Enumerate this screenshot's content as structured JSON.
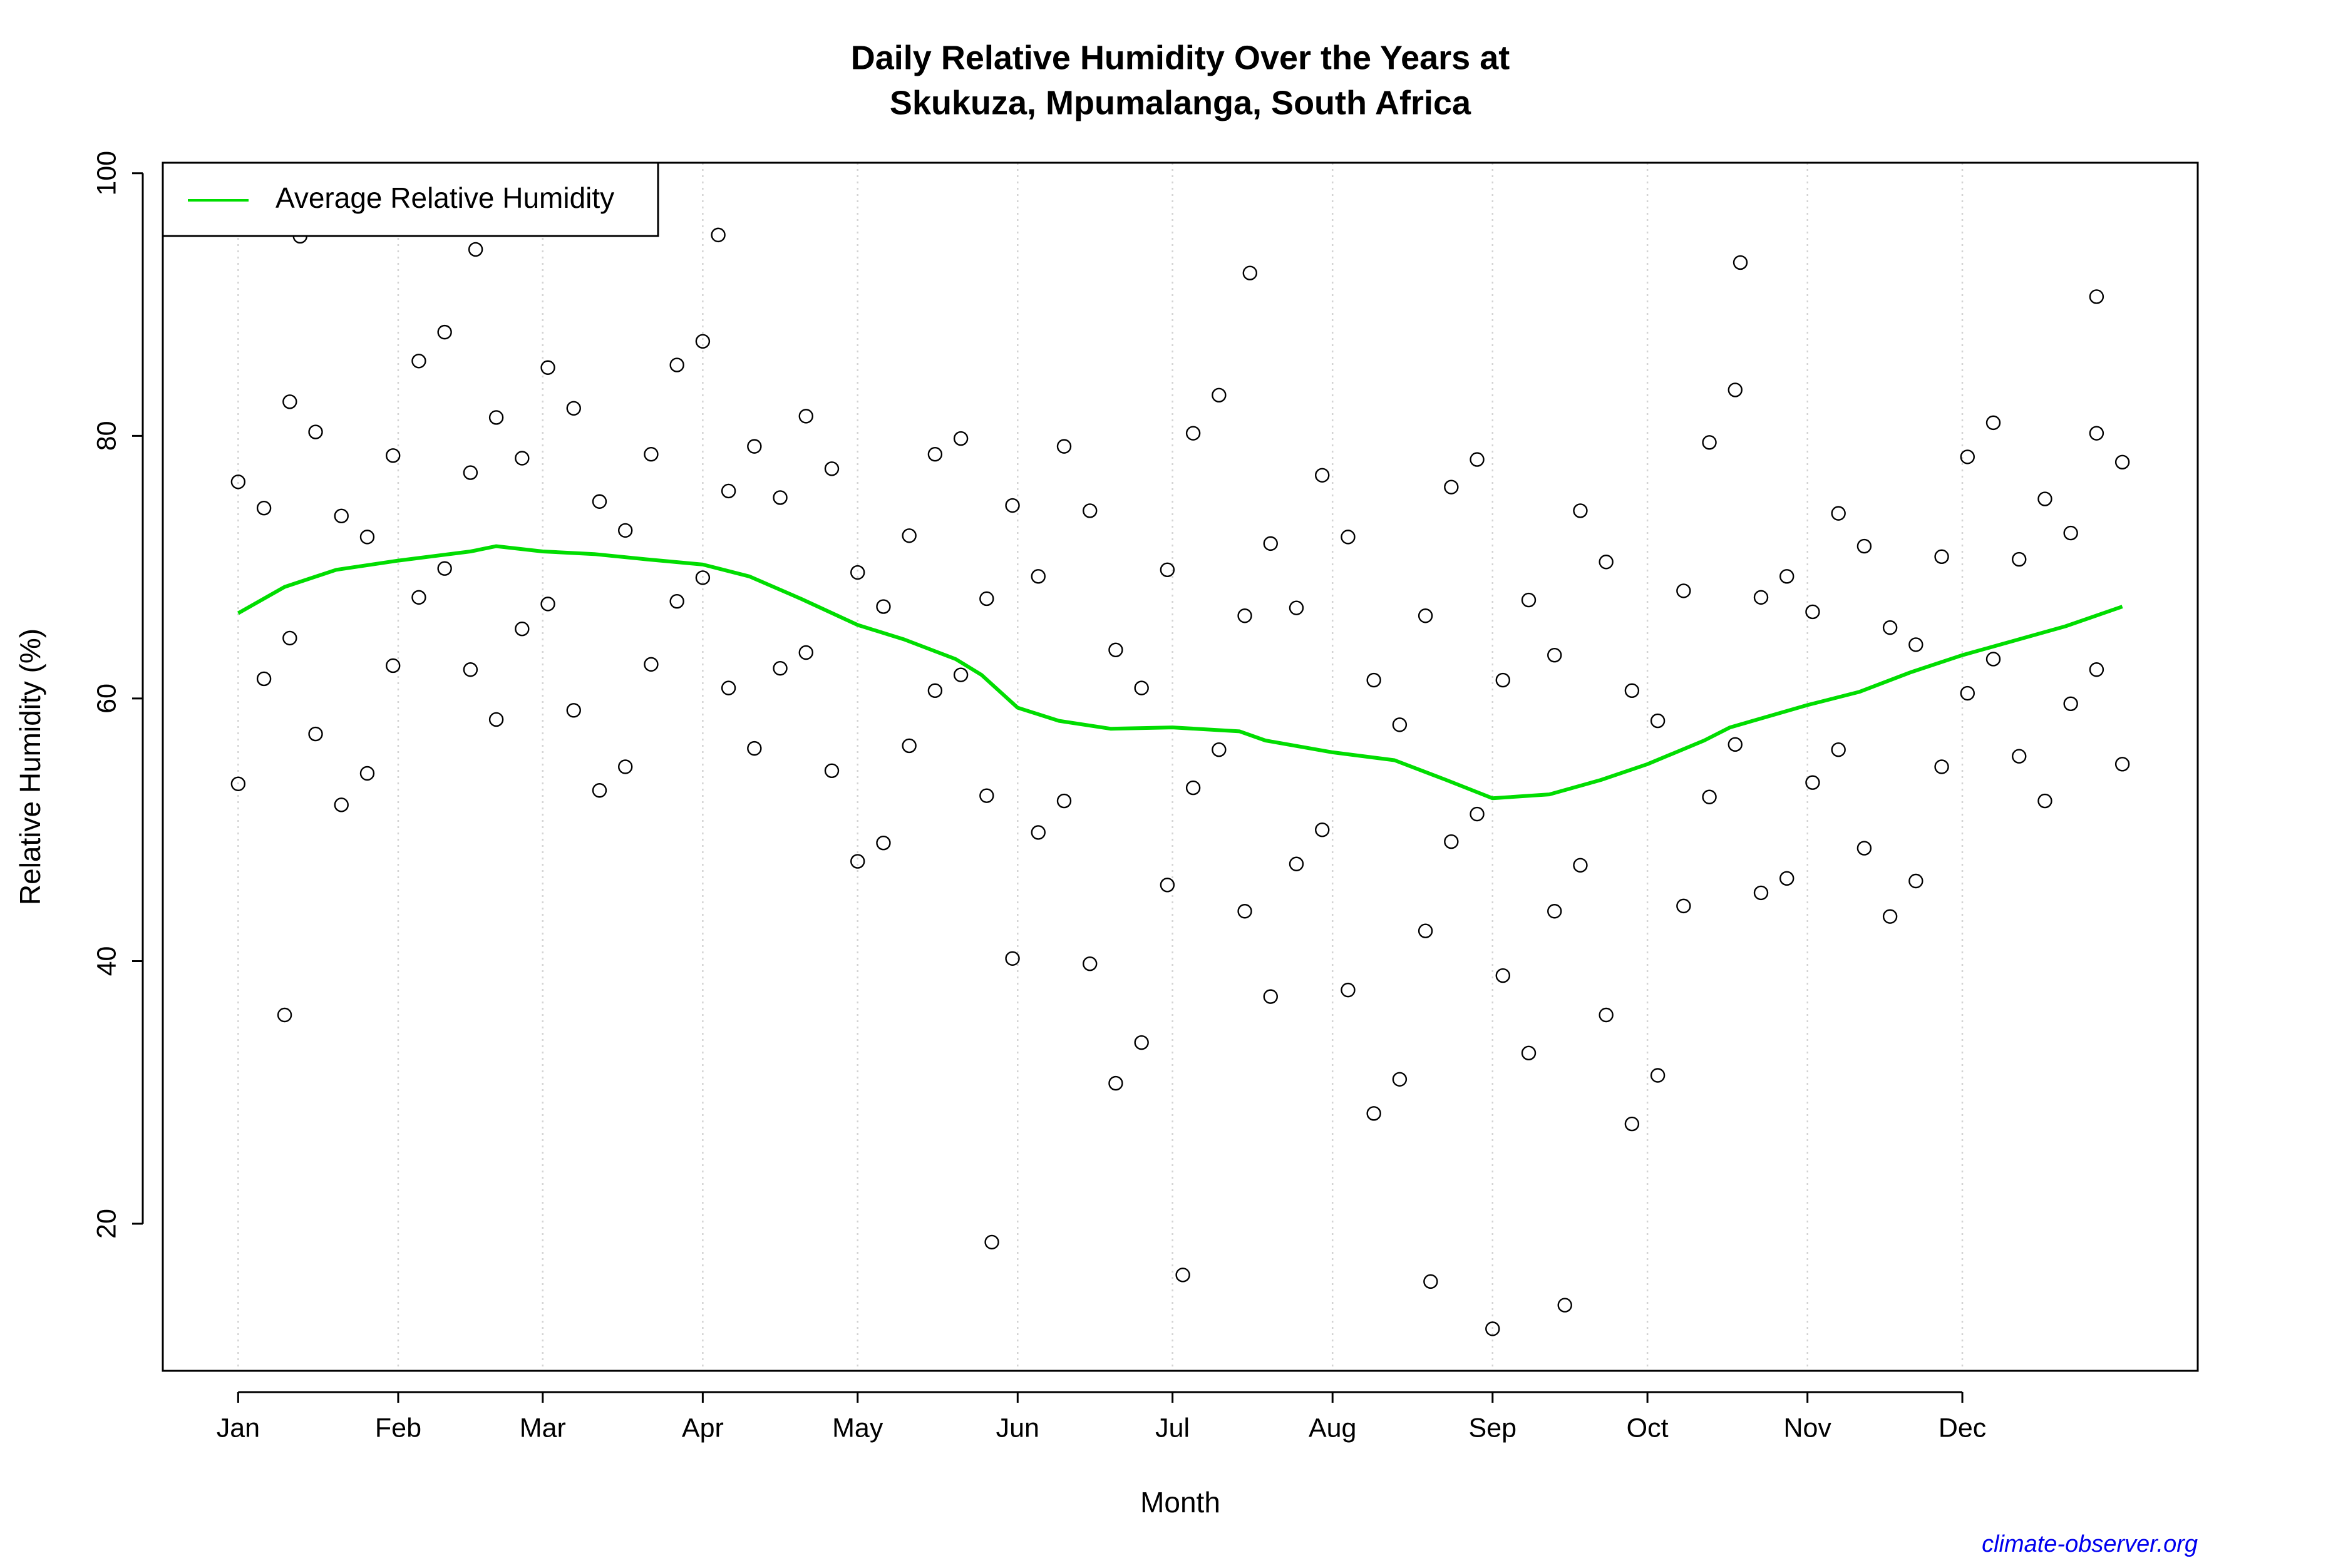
{
  "chart_data": {
    "type": "scatter",
    "title": "Daily Relative Humidity Over the Years at",
    "subtitle": "Skukuza, Mpumalanga, South Africa",
    "x_label": "Month",
    "y_label": "Relative Humidity  (%)",
    "source": "climate-observer.org",
    "xlim": [
      -13.6,
      380.6
    ],
    "ylim": [
      8.8,
      100.8
    ],
    "xticks": [
      {
        "value": 1,
        "label": "Jan"
      },
      {
        "value": 32,
        "label": "Feb"
      },
      {
        "value": 60,
        "label": "Mar"
      },
      {
        "value": 91,
        "label": "Apr"
      },
      {
        "value": 121,
        "label": "May"
      },
      {
        "value": 152,
        "label": "Jun"
      },
      {
        "value": 182,
        "label": "Jul"
      },
      {
        "value": 213,
        "label": "Aug"
      },
      {
        "value": 244,
        "label": "Sep"
      },
      {
        "value": 274,
        "label": "Oct"
      },
      {
        "value": 305,
        "label": "Nov"
      },
      {
        "value": 335,
        "label": "Dec"
      }
    ],
    "yticks": [
      20,
      40,
      60,
      80,
      100
    ],
    "grid": "x",
    "legend": "top-left",
    "series": [
      {
        "type": "scatter",
        "color": "#000000",
        "x": [
          1,
          1,
          6,
          6,
          11,
          11,
          16,
          16,
          21,
          21,
          26,
          26,
          31,
          31,
          36,
          36,
          41,
          41,
          46,
          46,
          51,
          51,
          56,
          56,
          61,
          61,
          66,
          66,
          71,
          71,
          76,
          76,
          81,
          81,
          86,
          86,
          91,
          91,
          96,
          96,
          101,
          101,
          106,
          106,
          111,
          111,
          116,
          116,
          121,
          121,
          126,
          126,
          131,
          131,
          136,
          136,
          141,
          141,
          146,
          146,
          151,
          151,
          156,
          156,
          161,
          161,
          166,
          166,
          171,
          171,
          176,
          176,
          181,
          181,
          186,
          186,
          191,
          191,
          196,
          196,
          201,
          201,
          206,
          206,
          211,
          211,
          216,
          216,
          221,
          221,
          226,
          226,
          231,
          231,
          236,
          236,
          241,
          241,
          246,
          246,
          251,
          251,
          256,
          256,
          261,
          261,
          266,
          266,
          271,
          271,
          276,
          276,
          281,
          281,
          286,
          286,
          291,
          291,
          296,
          296,
          301,
          301,
          306,
          306,
          311,
          311,
          316,
          316,
          321,
          321,
          326,
          326,
          331,
          331,
          336,
          336,
          341,
          341,
          346,
          346,
          351,
          351,
          356,
          356,
          361,
          361,
          366,
          366,
          10,
          244,
          258,
          147,
          197,
          94,
          13,
          47,
          292,
          184,
          232,
          361
        ],
        "values": [
          76.5,
          53.5,
          61.5,
          74.5,
          82.6,
          64.6,
          57.3,
          80.3,
          73.9,
          51.9,
          54.3,
          72.3,
          78.5,
          62.5,
          67.7,
          85.7,
          87.9,
          69.9,
          62.2,
          77.2,
          81.4,
          58.4,
          65.3,
          78.3,
          85.2,
          67.2,
          59.1,
          82.1,
          75,
          53,
          54.8,
          72.8,
          78.6,
          62.6,
          67.4,
          85.4,
          87.2,
          69.2,
          60.8,
          75.8,
          79.2,
          56.2,
          62.3,
          75.3,
          81.5,
          63.5,
          54.5,
          77.5,
          69.6,
          47.6,
          49,
          67,
          72.4,
          56.4,
          60.6,
          78.6,
          79.8,
          61.8,
          52.6,
          67.6,
          74.7,
          40.2,
          49.8,
          69.3,
          79.2,
          52.2,
          39.8,
          74.3,
          63.7,
          30.7,
          33.8,
          60.8,
          69.8,
          45.8,
          53.2,
          80.2,
          83.1,
          56.1,
          43.8,
          66.3,
          71.8,
          37.3,
          47.4,
          66.9,
          77,
          50,
          37.8,
          72.3,
          61.4,
          28.4,
          31,
          58,
          66.3,
          42.3,
          49.1,
          76.1,
          78.2,
          51.2,
          38.9,
          61.4,
          67.5,
          33,
          43.8,
          63.3,
          74.3,
          47.3,
          35.9,
          70.4,
          60.6,
          27.6,
          31.3,
          58.3,
          68.2,
          44.2,
          52.5,
          79.5,
          83.5,
          56.5,
          45.2,
          67.7,
          69.3,
          46.3,
          53.6,
          66.6,
          74.1,
          56.1,
          48.6,
          71.6,
          65.4,
          43.4,
          46.1,
          64.1,
          70.8,
          54.8,
          60.4,
          78.4,
          81,
          63,
          55.6,
          70.6,
          75.2,
          52.2,
          59.6,
          72.6,
          80.2,
          62.2,
          55,
          78,
          35.9,
          12,
          13.8,
          18.6,
          92.4,
          95.3,
          95.2,
          94.2,
          93.2,
          16.1,
          15.6,
          90.6
        ]
      },
      {
        "type": "line",
        "name": "Average Relative Humidity",
        "color": "#00dd00",
        "x": [
          1,
          10,
          20,
          32,
          46,
          51,
          60,
          70,
          80,
          91,
          100,
          110,
          121,
          130,
          140,
          145,
          152,
          160,
          170,
          182,
          195,
          200,
          213,
          225,
          235,
          244,
          255,
          265,
          274,
          285,
          290,
          305,
          315,
          325,
          335,
          345,
          355,
          366
        ],
        "values": [
          66.5,
          68.5,
          69.8,
          70.5,
          71.2,
          71.6,
          71.2,
          71,
          70.6,
          70.2,
          69.3,
          67.6,
          65.6,
          64.5,
          63,
          61.8,
          59.3,
          58.3,
          57.7,
          57.8,
          57.5,
          56.8,
          55.9,
          55.3,
          53.8,
          52.4,
          52.7,
          53.8,
          55,
          56.8,
          57.8,
          59.5,
          60.5,
          62,
          63.3,
          64.4,
          65.5,
          67
        ]
      }
    ]
  }
}
